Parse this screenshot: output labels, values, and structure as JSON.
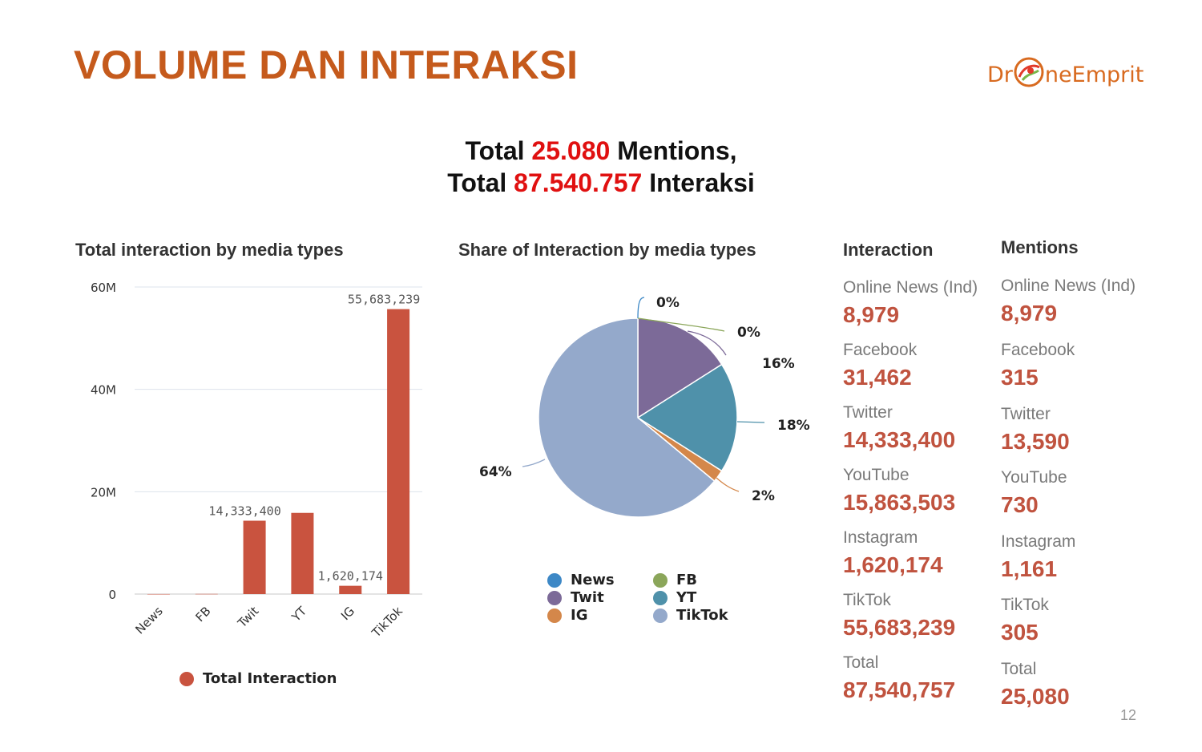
{
  "slide": {
    "title": "VOLUME DAN INTERAKSI",
    "page_number": "12"
  },
  "logo": {
    "text_left": "Dr",
    "text_right": "neEmprit",
    "accent_color": "#d86a1f"
  },
  "headline": {
    "line1_prefix": "Total ",
    "line1_value": "25.080",
    "line1_suffix": " Mentions,",
    "line2_prefix": "Total ",
    "line2_value": "87.540.757",
    "line2_suffix": " Interaksi",
    "highlight_color": "#e01010"
  },
  "bar_section": {
    "title": "Total interaction by media types",
    "legend_label": "Total Interaction",
    "bar_color": "#c9533f"
  },
  "pie_section": {
    "title": "Share of Interaction by media types",
    "legend": [
      {
        "label": "News",
        "color": "#3d88c6"
      },
      {
        "label": "FB",
        "color": "#8ba65a"
      },
      {
        "label": "Twit",
        "color": "#7c6a98"
      },
      {
        "label": "YT",
        "color": "#4f91aa"
      },
      {
        "label": "IG",
        "color": "#d4874a"
      },
      {
        "label": "TikTok",
        "color": "#94a9cb"
      }
    ]
  },
  "chart_data": [
    {
      "type": "bar",
      "title": "Total interaction by media types",
      "categories": [
        "News",
        "FB",
        "Twit",
        "YT",
        "IG",
        "TikTok"
      ],
      "series": [
        {
          "name": "Total Interaction",
          "values": [
            8979,
            31462,
            14333400,
            15863503,
            1620174,
            55683239
          ]
        }
      ],
      "data_labels": {
        "Twit": "14,333,400",
        "IG": "1,620,174",
        "TikTok": "55,683,239"
      },
      "y_ticks": [
        "0",
        "20M",
        "40M",
        "60M"
      ],
      "ylim": [
        0,
        60000000
      ],
      "grid": true,
      "legend_position": "bottom"
    },
    {
      "type": "pie",
      "title": "Share of Interaction by media types",
      "slices": [
        {
          "label": "News",
          "value": 0,
          "display": "0%"
        },
        {
          "label": "FB",
          "value": 0,
          "display": "0%"
        },
        {
          "label": "Twit",
          "value": 16,
          "display": "16%"
        },
        {
          "label": "YT",
          "value": 18,
          "display": "18%"
        },
        {
          "label": "IG",
          "value": 2,
          "display": "2%"
        },
        {
          "label": "TikTok",
          "value": 64,
          "display": "64%"
        }
      ],
      "legend_position": "bottom"
    }
  ],
  "stats": {
    "interaction": {
      "heading": "Interaction",
      "rows": [
        {
          "label": "Online News (Ind)",
          "value": "8,979"
        },
        {
          "label": "Facebook",
          "value": "31,462"
        },
        {
          "label": "Twitter",
          "value": "14,333,400"
        },
        {
          "label": "YouTube",
          "value": "15,863,503"
        },
        {
          "label": "Instagram",
          "value": "1,620,174"
        },
        {
          "label": "TikTok",
          "value": "55,683,239"
        },
        {
          "label": "Total",
          "value": "87,540,757"
        }
      ]
    },
    "mentions": {
      "heading": "Mentions",
      "rows": [
        {
          "label": "Online News (Ind)",
          "value": "8,979"
        },
        {
          "label": "Facebook",
          "value": "315"
        },
        {
          "label": "Twitter",
          "value": "13,590"
        },
        {
          "label": "YouTube",
          "value": "730"
        },
        {
          "label": "Instagram",
          "value": "1,161"
        },
        {
          "label": "TikTok",
          "value": "305"
        },
        {
          "label": "Total",
          "value": "25,080"
        }
      ]
    }
  }
}
